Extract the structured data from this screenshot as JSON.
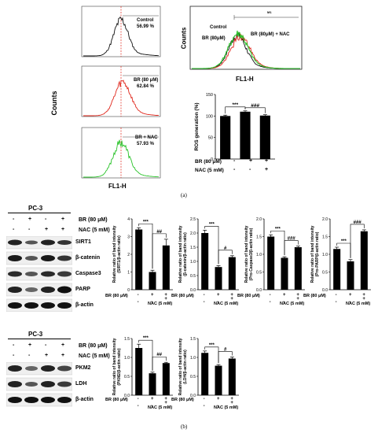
{
  "panel_a": {
    "tag": "(a)",
    "flow_left": {
      "ylabel": "Counts",
      "xlabel": "FL1-H",
      "histograms": [
        {
          "name": "Control",
          "value": "56.99 %",
          "color": "#111111"
        },
        {
          "name": "BR (80 μM)",
          "value": "62.84 %",
          "color": "#e0261b"
        },
        {
          "name": "BR + NAC",
          "value": "57.93 %",
          "color": "#28c228"
        }
      ]
    },
    "overlay": {
      "ylabel": "Counts",
      "xlabel": "FL1-H",
      "labels": {
        "control": "Control",
        "br": "BR (80μM)",
        "brnac": "BR (80μM) + NAC"
      },
      "gate": "M1"
    },
    "ros_chart": {
      "ylabel": "ROS generation (%)",
      "sig1": "***",
      "sig2": "###",
      "row1_label": "BR (80 μM)",
      "row2_label": "NAC (5 mM)",
      "row1_signs": [
        "-",
        "+",
        "+"
      ],
      "row2_signs": [
        "-",
        "-",
        "+"
      ]
    }
  },
  "panel_b": {
    "tag": "(b)",
    "blot1": {
      "cell_line": "PC-3",
      "row1_label": "BR (80 μM)",
      "row2_label": "NAC (5 mM)",
      "row1_signs": [
        "-",
        "+",
        "-",
        "+"
      ],
      "row2_signs": [
        "-",
        "-",
        "+",
        "+"
      ],
      "proteins": [
        "SIRT1",
        "β-catenin",
        "Caspase3",
        "PARP",
        "β-actin"
      ]
    },
    "blot2": {
      "cell_line": "PC-3",
      "row1_label": "BR (80 μM)",
      "row2_label": "NAC (5 mM)",
      "row1_signs": [
        "-",
        "+",
        "-",
        "+"
      ],
      "row2_signs": [
        "-",
        "-",
        "+",
        "+"
      ],
      "proteins": [
        "PKM2",
        "LDH",
        "β-actin"
      ]
    },
    "bar_row1_label": "BR (80 μM)",
    "bar_row2_label": "NAC (5 mM)",
    "bar_row1_signs": [
      "-",
      "+",
      "+"
    ],
    "bar_row2_signs": [
      "-",
      "-",
      "+"
    ]
  },
  "chart_data": [
    {
      "type": "bar",
      "id": "ros",
      "categories": [
        "-/-",
        "+/-",
        "+/+"
      ],
      "values": [
        100,
        110,
        101
      ],
      "errors": [
        2,
        2,
        2
      ],
      "ylim": [
        0,
        150
      ],
      "yticks": [
        0,
        50,
        100,
        150
      ],
      "ylabel": "ROS generation (%)",
      "sig": [
        "***",
        "###"
      ]
    },
    {
      "type": "bar",
      "id": "sirt1",
      "categories": [
        "-/-",
        "+/-",
        "+/+"
      ],
      "values": [
        3.4,
        1.0,
        2.5
      ],
      "errors": [
        0.1,
        0.1,
        0.35
      ],
      "ylim": [
        0,
        4
      ],
      "yticks": [
        0,
        1,
        2,
        3,
        4
      ],
      "ylabel": "Relative ratio of band intensity (SIRT1/β-actin ratio)",
      "sig": [
        "***",
        "##"
      ]
    },
    {
      "type": "bar",
      "id": "bcatenin",
      "categories": [
        "-/-",
        "+/-",
        "+/+"
      ],
      "values": [
        2.0,
        0.8,
        1.15
      ],
      "errors": [
        0.1,
        0.05,
        0.05
      ],
      "ylim": [
        0,
        2.5
      ],
      "yticks": [
        0.0,
        0.5,
        1.0,
        1.5,
        2.0,
        2.5
      ],
      "ylabel": "Relative ratio of band intensity (β-catenin/β-actin ratio)",
      "sig": [
        "***",
        "#"
      ]
    },
    {
      "type": "bar",
      "id": "caspase3",
      "categories": [
        "-/-",
        "+/-",
        "+/+"
      ],
      "values": [
        1.5,
        0.9,
        1.2
      ],
      "errors": [
        0.05,
        0.03,
        0.03
      ],
      "ylim": [
        0,
        2.0
      ],
      "yticks": [
        0.0,
        0.5,
        1.0,
        1.5,
        2.0
      ],
      "ylabel": "Relative ratio of band intensity (Pro-Caspase3/β-actin ratio)",
      "sig": [
        "***",
        "###"
      ]
    },
    {
      "type": "bar",
      "id": "parp",
      "categories": [
        "-/-",
        "+/-",
        "+/+"
      ],
      "values": [
        1.15,
        0.8,
        1.65
      ],
      "errors": [
        0.05,
        0.05,
        0.04
      ],
      "ylim": [
        0,
        2.0
      ],
      "yticks": [
        0.0,
        0.5,
        1.0,
        1.5,
        2.0
      ],
      "ylabel": "Relative ratio of band intensity (Pro-PARP/β-actin ratio)",
      "sig": [
        "***",
        "###"
      ]
    },
    {
      "type": "bar",
      "id": "pkm2",
      "categories": [
        "-/-",
        "+/-",
        "+/+"
      ],
      "values": [
        1.25,
        0.58,
        0.85
      ],
      "errors": [
        0.1,
        0.03,
        0.02
      ],
      "ylim": [
        0,
        1.5
      ],
      "yticks": [
        0.0,
        0.5,
        1.0,
        1.5
      ],
      "ylabel": "Relative ratio of band intensity (PKM2/β-actin ratio)",
      "sig": [
        "***",
        "##"
      ]
    },
    {
      "type": "bar",
      "id": "ldh",
      "categories": [
        "-/-",
        "+/-",
        "+/+"
      ],
      "values": [
        1.12,
        0.78,
        0.97
      ],
      "errors": [
        0.05,
        0.03,
        0.04
      ],
      "ylim": [
        0,
        1.5
      ],
      "yticks": [
        0.0,
        0.5,
        1.0,
        1.5
      ],
      "ylabel": "Relative ratio of band intensity (LDH/β-actin ratio)",
      "sig": [
        "***",
        "#"
      ]
    }
  ]
}
